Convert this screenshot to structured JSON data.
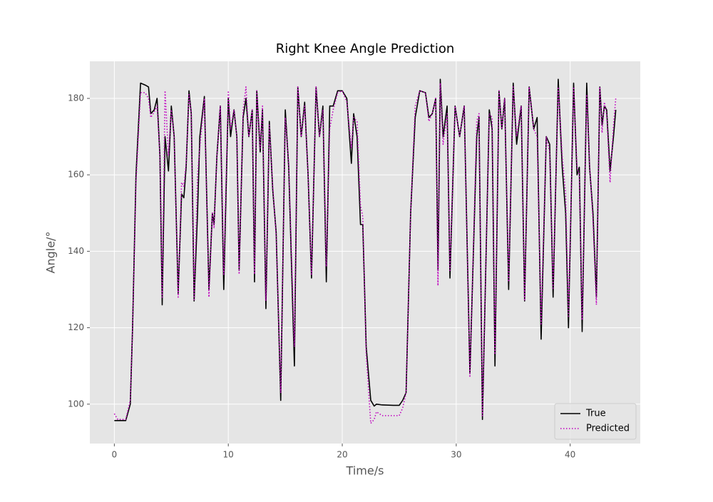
{
  "chart_data": {
    "type": "line",
    "title": "Right Knee Angle Prediction",
    "xlabel": "Time/s",
    "ylabel": "Angle/°",
    "xlim": [
      -2.15,
      46.15
    ],
    "ylim": [
      89.7,
      189.7
    ],
    "xticks": [
      0,
      10,
      20,
      30,
      40
    ],
    "yticks": [
      100,
      120,
      140,
      160,
      180
    ],
    "grid": true,
    "legend": "lower right",
    "x": [
      0,
      0.3,
      1.0,
      1.4,
      1.6,
      1.9,
      2.3,
      2.7,
      3.0,
      3.2,
      3.5,
      3.75,
      4.0,
      4.2,
      4.45,
      4.75,
      5.0,
      5.25,
      5.6,
      5.9,
      6.1,
      6.3,
      6.55,
      6.75,
      7.0,
      7.3,
      7.5,
      7.9,
      8.3,
      8.6,
      8.75,
      9.0,
      9.3,
      9.6,
      10.0,
      10.2,
      10.5,
      10.75,
      10.95,
      11.3,
      11.55,
      11.8,
      12.1,
      12.3,
      12.5,
      12.8,
      13.0,
      13.3,
      13.6,
      13.9,
      14.2,
      14.6,
      15.0,
      15.3,
      15.8,
      16.1,
      16.4,
      16.7,
      17.0,
      17.3,
      17.7,
      18.0,
      18.3,
      18.6,
      18.9,
      19.2,
      19.6,
      20.0,
      20.4,
      20.8,
      21.0,
      21.3,
      21.6,
      21.8,
      22.1,
      22.5,
      22.8,
      23.0,
      23.5,
      24.5,
      25.0,
      25.3,
      25.6,
      26.0,
      26.4,
      26.8,
      27.3,
      27.6,
      27.9,
      28.2,
      28.4,
      28.6,
      28.85,
      29.2,
      29.45,
      29.9,
      30.3,
      30.7,
      31.2,
      31.8,
      32.0,
      32.3,
      32.9,
      33.15,
      33.4,
      33.75,
      34.0,
      34.25,
      34.6,
      35.0,
      35.3,
      35.7,
      36.0,
      36.4,
      36.8,
      37.1,
      37.45,
      37.9,
      38.2,
      38.5,
      38.95,
      39.3,
      39.6,
      39.85,
      40.3,
      40.6,
      40.8,
      41.05,
      41.45,
      41.7,
      42.0,
      42.3,
      42.6,
      42.8,
      43.0,
      43.2,
      43.5,
      43.8,
      44.0
    ],
    "series": [
      {
        "name": "True",
        "color": "#000000",
        "style": "solid",
        "values": [
          95.7,
          95.7,
          95.7,
          100,
          120,
          160,
          184,
          183.5,
          183,
          176,
          177,
          180,
          165,
          126,
          170,
          161,
          178,
          170,
          129,
          155,
          154,
          162,
          182,
          176,
          127,
          150,
          170,
          180.5,
          130,
          150,
          147,
          165,
          178,
          130,
          180,
          170,
          177,
          170,
          135,
          175,
          180,
          170,
          177,
          132,
          182,
          166,
          177,
          125,
          174,
          156,
          145,
          101,
          177,
          162,
          110,
          183,
          170,
          179,
          160,
          133,
          183,
          170,
          178,
          132,
          178,
          178,
          182,
          182,
          180,
          163,
          176,
          170,
          147,
          147,
          115,
          101,
          99.5,
          100,
          99.8,
          99.7,
          99.7,
          101,
          103,
          150,
          175,
          182,
          181.5,
          175,
          176,
          180,
          135,
          185,
          170,
          178,
          133,
          178,
          170,
          178,
          108,
          170,
          175,
          96,
          177,
          172,
          110,
          182,
          172,
          180,
          130,
          184,
          168,
          178,
          127,
          183,
          172,
          175,
          117,
          170,
          168,
          128,
          185,
          162,
          150,
          120,
          184,
          160,
          162,
          119,
          184,
          162,
          150,
          128,
          183,
          173,
          178,
          177,
          161,
          170,
          177
        ]
      },
      {
        "name": "Predicted",
        "color": "#bf00bf",
        "style": "dotted",
        "values": [
          97.5,
          96,
          96,
          101,
          120,
          158,
          181.5,
          181.5,
          180,
          175,
          176.5,
          178,
          165,
          128,
          182,
          165,
          177,
          170,
          128,
          158,
          157,
          163,
          181,
          176,
          127,
          160,
          167,
          180,
          128,
          150,
          146,
          165,
          178,
          134,
          182,
          172,
          177,
          170,
          134,
          177,
          183,
          170,
          177,
          134,
          182,
          167,
          178,
          127,
          173,
          157,
          144,
          103,
          175,
          163,
          115,
          183,
          170,
          178,
          160,
          134,
          183,
          170,
          177,
          136,
          172,
          177,
          181.5,
          182,
          179,
          167,
          175,
          174,
          152,
          149,
          113,
          95,
          96,
          98,
          97,
          97,
          97,
          99,
          103,
          150,
          178,
          182,
          181.5,
          174,
          176,
          180,
          131,
          184,
          168,
          176,
          135,
          178,
          170,
          178,
          107,
          174,
          176,
          97,
          176,
          175,
          113,
          182,
          172,
          180,
          132,
          183,
          170,
          178,
          127,
          183,
          172,
          170,
          121,
          170,
          166,
          130,
          183,
          165,
          155,
          123,
          183,
          162,
          160,
          122,
          181,
          163,
          148,
          126,
          183,
          171,
          179,
          176,
          158,
          173,
          180
        ]
      }
    ]
  }
}
